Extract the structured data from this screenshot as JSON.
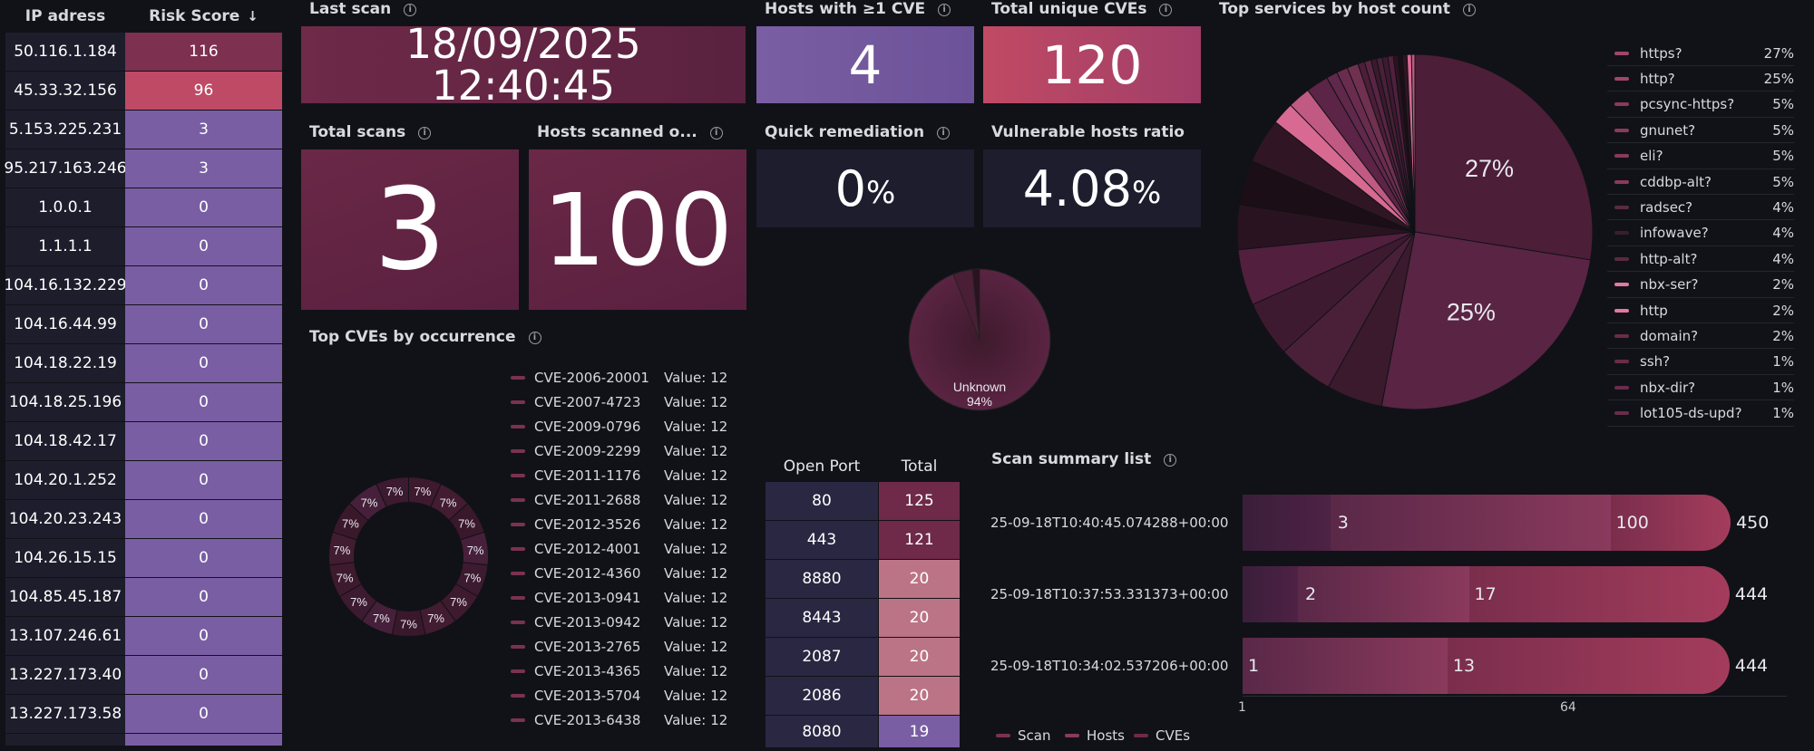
{
  "risk_table": {
    "headers": {
      "ip": "IP adress",
      "score": "Risk Score",
      "sort_icon": "arrow-down-icon"
    },
    "rows": [
      {
        "ip": "50.116.1.184",
        "score": "116",
        "color": "#7d3050"
      },
      {
        "ip": "45.33.32.156",
        "score": "96",
        "color": "#bf4a66"
      },
      {
        "ip": "5.153.225.231",
        "score": "3",
        "color": "#7a5ea4"
      },
      {
        "ip": "95.217.163.246",
        "score": "3",
        "color": "#7a5ea4"
      },
      {
        "ip": "1.0.0.1",
        "score": "0",
        "color": "#7a5ea4"
      },
      {
        "ip": "1.1.1.1",
        "score": "0",
        "color": "#7a5ea4"
      },
      {
        "ip": "104.16.132.229",
        "score": "0",
        "color": "#7a5ea4"
      },
      {
        "ip": "104.16.44.99",
        "score": "0",
        "color": "#7a5ea4"
      },
      {
        "ip": "104.18.22.19",
        "score": "0",
        "color": "#7a5ea4"
      },
      {
        "ip": "104.18.25.196",
        "score": "0",
        "color": "#7a5ea4"
      },
      {
        "ip": "104.18.42.17",
        "score": "0",
        "color": "#7a5ea4"
      },
      {
        "ip": "104.20.1.252",
        "score": "0",
        "color": "#7a5ea4"
      },
      {
        "ip": "104.20.23.243",
        "score": "0",
        "color": "#7a5ea4"
      },
      {
        "ip": "104.26.15.15",
        "score": "0",
        "color": "#7a5ea4"
      },
      {
        "ip": "104.85.45.187",
        "score": "0",
        "color": "#7a5ea4"
      },
      {
        "ip": "13.107.246.61",
        "score": "0",
        "color": "#7a5ea4"
      },
      {
        "ip": "13.227.173.40",
        "score": "0",
        "color": "#7a5ea4"
      },
      {
        "ip": "13.227.173.58",
        "score": "0",
        "color": "#7a5ea4"
      },
      {
        "ip": "",
        "score": "",
        "color": "#7a5ea4"
      }
    ]
  },
  "last_scan": {
    "title": "Last scan",
    "date": "18/09/2025",
    "time": "12:40:45"
  },
  "hosts_cve": {
    "title": "Hosts with ≥1 CVE",
    "value": "4"
  },
  "unique_cves": {
    "title": "Total unique CVEs",
    "value": "120"
  },
  "total_scans": {
    "title": "Total scans",
    "value": "3"
  },
  "hosts_scanned": {
    "title": "Hosts scanned o...",
    "value": "100"
  },
  "quick_remediation": {
    "title": "Quick remediation",
    "value": "0",
    "unit": "%"
  },
  "vuln_ratio": {
    "title": "Vulnerable hosts ratio",
    "value": "4.08",
    "unit": "%"
  },
  "top_cves": {
    "title": "Top CVEs by occurrence",
    "value_prefix": "Value:",
    "items": [
      {
        "name": "CVE-2006-20001",
        "value": "12"
      },
      {
        "name": "CVE-2007-4723",
        "value": "12"
      },
      {
        "name": "CVE-2009-0796",
        "value": "12"
      },
      {
        "name": "CVE-2009-2299",
        "value": "12"
      },
      {
        "name": "CVE-2011-1176",
        "value": "12"
      },
      {
        "name": "CVE-2011-2688",
        "value": "12"
      },
      {
        "name": "CVE-2012-3526",
        "value": "12"
      },
      {
        "name": "CVE-2012-4001",
        "value": "12"
      },
      {
        "name": "CVE-2012-4360",
        "value": "12"
      },
      {
        "name": "CVE-2013-0941",
        "value": "12"
      },
      {
        "name": "CVE-2013-0942",
        "value": "12"
      },
      {
        "name": "CVE-2013-2765",
        "value": "12"
      },
      {
        "name": "CVE-2013-4365",
        "value": "12"
      },
      {
        "name": "CVE-2013-5704",
        "value": "12"
      },
      {
        "name": "CVE-2013-6438",
        "value": "12"
      }
    ]
  },
  "ports": {
    "headers": {
      "port": "Open Port",
      "total": "Total"
    },
    "rows": [
      {
        "port": "80",
        "total": "125",
        "color": "#6e2a48"
      },
      {
        "port": "443",
        "total": "121",
        "color": "#6e2a48"
      },
      {
        "port": "8880",
        "total": "20",
        "color": "#bb7485"
      },
      {
        "port": "8443",
        "total": "20",
        "color": "#bb7485"
      },
      {
        "port": "2087",
        "total": "20",
        "color": "#bb7485"
      },
      {
        "port": "2086",
        "total": "20",
        "color": "#bb7485"
      },
      {
        "port": "8080",
        "total": "19",
        "color": "#7a5ea4"
      }
    ]
  },
  "services": {
    "title": "Top services by host count",
    "items": [
      {
        "name": "https?",
        "pct": "27%",
        "color": "#a0466a"
      },
      {
        "name": "http?",
        "pct": "25%",
        "color": "#a0466a"
      },
      {
        "name": "pcsync-https?",
        "pct": "5%",
        "color": "#8a3a5c"
      },
      {
        "name": "gnunet?",
        "pct": "5%",
        "color": "#8a3a5c"
      },
      {
        "name": "eli?",
        "pct": "5%",
        "color": "#8a3a5c"
      },
      {
        "name": "cddbp-alt?",
        "pct": "5%",
        "color": "#8a3a5c"
      },
      {
        "name": "radsec?",
        "pct": "4%",
        "color": "#5a2a42"
      },
      {
        "name": "infowave?",
        "pct": "4%",
        "color": "#3a1e2c"
      },
      {
        "name": "http-alt?",
        "pct": "4%",
        "color": "#5a2a42"
      },
      {
        "name": "nbx-ser?",
        "pct": "2%",
        "color": "#e07aa0"
      },
      {
        "name": "http",
        "pct": "2%",
        "color": "#e07aa0"
      },
      {
        "name": "domain?",
        "pct": "2%",
        "color": "#6a2c4a"
      },
      {
        "name": "ssh?",
        "pct": "1%",
        "color": "#6a2c4a"
      },
      {
        "name": "nbx-dir?",
        "pct": "1%",
        "color": "#6a2c4a"
      },
      {
        "name": "lot105-ds-upd?",
        "pct": "1%",
        "color": "#6a2c4a"
      }
    ],
    "pie_labels": {
      "first": "27%",
      "second": "25%"
    }
  },
  "unknown_pie": {
    "label": "Unknown",
    "pct": "94%"
  },
  "scan_summary": {
    "title": "Scan summary list",
    "axis": {
      "start": "1",
      "mid": "64"
    },
    "rows": [
      {
        "label": "25-09-18T10:40:45.074288+00:00",
        "scan": "3",
        "hosts": "100",
        "cves": "450"
      },
      {
        "label": "25-09-18T10:37:53.331373+00:00",
        "scan": "2",
        "hosts": "17",
        "cves": "444"
      },
      {
        "label": "25-09-18T10:34:02.537206+00:00",
        "scan": "1",
        "hosts": "13",
        "cves": "444"
      }
    ],
    "legend": [
      {
        "name": "Scan",
        "color": "#7a3250"
      },
      {
        "name": "Hosts",
        "color": "#8a3a5c"
      },
      {
        "name": "CVEs",
        "color": "#6e2a48"
      }
    ]
  },
  "donut_label": "7%"
}
